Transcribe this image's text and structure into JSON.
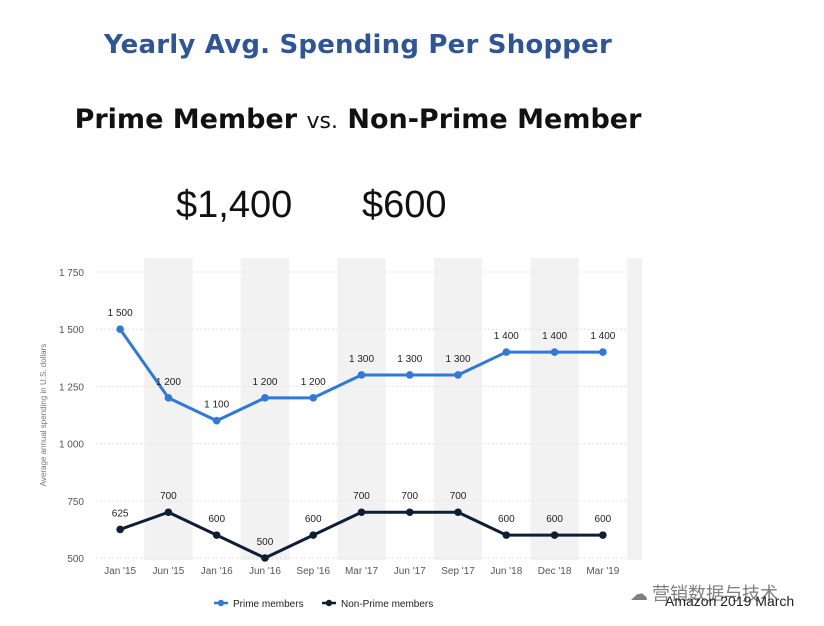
{
  "header": {
    "title": "Yearly Avg. Spending Per Shopper",
    "subtitle_left": "Prime Member",
    "subtitle_vs": "vs.",
    "subtitle_right": "Non-Prime Member"
  },
  "highlights": {
    "prime_value": "$1,400",
    "non_prime_value": "$600"
  },
  "watermark": "营销数据与技术",
  "source": "Amazon 2019 March",
  "colors": {
    "prime": "#2f7ad9",
    "non_prime": "#0e1f35",
    "band": "#f2f2f2",
    "grid": "#e3e3e3",
    "axis_text": "#555555"
  },
  "chart_data": {
    "type": "line",
    "categories": [
      "Jan '15",
      "Jun '15",
      "Jan '16",
      "Jun '16",
      "Sep '16",
      "Mar '17",
      "Jun '17",
      "Sep '17",
      "Jun '18",
      "Dec '18",
      "Mar '19"
    ],
    "series": [
      {
        "name": "Prime members",
        "values": [
          1500,
          1200,
          1100,
          1200,
          1200,
          1300,
          1300,
          1300,
          1400,
          1400,
          1400
        ],
        "labels": [
          "1 500",
          "1 200",
          "1 100",
          "1 200",
          "1 200",
          "1 300",
          "1 300",
          "1 300",
          "1 400",
          "1 400",
          "1 400"
        ]
      },
      {
        "name": "Non-Prime members",
        "values": [
          625,
          700,
          600,
          500,
          600,
          700,
          700,
          700,
          600,
          600,
          600
        ],
        "labels": [
          "625",
          "700",
          "600",
          "500",
          "600",
          "700",
          "700",
          "700",
          "600",
          "600",
          "600"
        ]
      }
    ],
    "ylabel": "Average annual spending in U.S. dollars",
    "ylim": [
      500,
      1750
    ],
    "yticks": [
      500,
      750,
      1000,
      1250,
      1500,
      1750
    ],
    "ytick_labels": [
      "500",
      "750",
      "1 000",
      "1 250",
      "1 500",
      "1 750"
    ],
    "grid": true,
    "legend_position": "bottom"
  }
}
